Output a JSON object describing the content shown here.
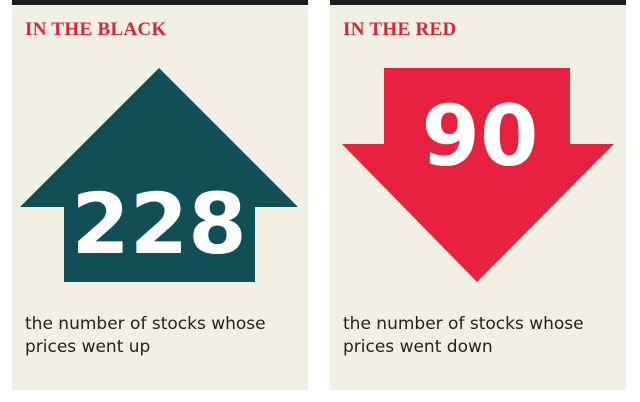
{
  "panels": {
    "up": {
      "heading": "IN THE BLACK",
      "count": "228",
      "caption": "the number of stocks whose prices went up",
      "arrow_color": "#0f4f55",
      "direction": "up",
      "icon": "arrow-up-icon"
    },
    "down": {
      "heading": "IN THE RED",
      "count": "90",
      "caption": "the number of stocks whose prices went down",
      "arrow_color": "#e7213e",
      "direction": "down",
      "icon": "arrow-down-icon"
    }
  },
  "colors": {
    "panel_background": "#f2efe4",
    "heading": "#d8243f",
    "top_rule": "#1c1c1c",
    "caption_text": "#222222"
  }
}
